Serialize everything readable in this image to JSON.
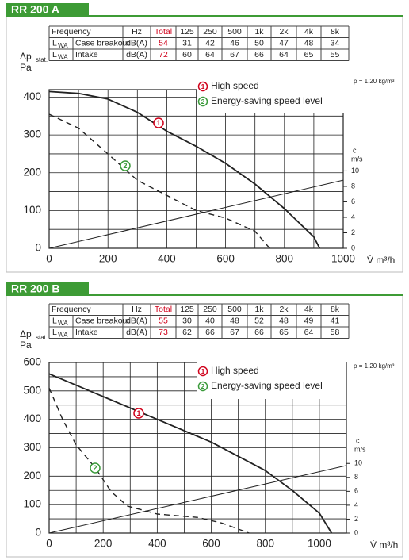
{
  "chart_data": [
    {
      "type": "line",
      "title": "RR 200 A",
      "table": {
        "header": {
          "label": "Frequency",
          "unit": "Hz",
          "total": "Total",
          "bands": [
            125,
            250,
            500,
            "1k",
            "2k",
            "4k",
            "8k"
          ]
        },
        "rows": [
          {
            "symbol": "L",
            "subscript": "WA",
            "label": "Case breakout",
            "unit": "dB(A)",
            "total": 54,
            "values": [
              31,
              42,
              46,
              50,
              47,
              48,
              34
            ]
          },
          {
            "symbol": "L",
            "subscript": "WA",
            "label": "Intake",
            "unit": "dB(A)",
            "total": 72,
            "values": [
              60,
              64,
              67,
              66,
              64,
              65,
              55
            ]
          }
        ]
      },
      "y_label": {
        "symbol": "Δp",
        "subscript": "stat.",
        "unit": "Pa"
      },
      "x_label": "V̇ m³/h",
      "y2_label": {
        "symbol": "c",
        "unit": "m/s"
      },
      "density": "ρ = 1.20 kg/m³",
      "xlim": [
        0,
        1000
      ],
      "xticks": [
        0,
        200,
        400,
        600,
        800,
        1000
      ],
      "xgrid": [
        100,
        300,
        500,
        700,
        900
      ],
      "ylim": [
        0,
        420
      ],
      "yticks": [
        0,
        100,
        200,
        300,
        400
      ],
      "ygrid": [
        50,
        150,
        250,
        350
      ],
      "y2lim": [
        0,
        20.5
      ],
      "y2ticks": [
        0,
        2,
        4,
        6,
        8,
        10
      ],
      "series": [
        {
          "name": "High speed",
          "marker": "1",
          "marker_color": "#d0021b",
          "color": "#222",
          "style": "solid",
          "x": [
            0,
            100,
            200,
            300,
            400,
            500,
            600,
            700,
            800,
            900,
            920
          ],
          "values": [
            415,
            410,
            395,
            360,
            310,
            270,
            225,
            170,
            105,
            30,
            0
          ]
        },
        {
          "name": "Energy-saving speed level",
          "marker": "2",
          "marker_color": "#3a9a3a",
          "color": "#222",
          "style": "dashed",
          "x": [
            0,
            100,
            200,
            300,
            400,
            500,
            600,
            700,
            750
          ],
          "values": [
            355,
            318,
            250,
            180,
            140,
            100,
            80,
            45,
            0
          ]
        },
        {
          "axis": "y2",
          "color": "#222",
          "style": "thin",
          "x": [
            0,
            1000
          ],
          "values": [
            0,
            8.8
          ]
        }
      ]
    },
    {
      "type": "line",
      "title": "RR 200 B",
      "table": {
        "header": {
          "label": "Frequency",
          "unit": "Hz",
          "total": "Total",
          "bands": [
            125,
            250,
            500,
            "1k",
            "2k",
            "4k",
            "8k"
          ]
        },
        "rows": [
          {
            "symbol": "L",
            "subscript": "WA",
            "label": "Case breakout",
            "unit": "dB(A)",
            "total": 55,
            "values": [
              30,
              40,
              48,
              52,
              48,
              49,
              41
            ]
          },
          {
            "symbol": "L",
            "subscript": "WA",
            "label": "Intake",
            "unit": "dB(A)",
            "total": 73,
            "values": [
              62,
              66,
              67,
              66,
              65,
              64,
              58
            ]
          }
        ]
      },
      "y_label": {
        "symbol": "Δp",
        "subscript": "stat.",
        "unit": "Pa"
      },
      "x_label": "V̇ m³/h",
      "y2_label": {
        "symbol": "c",
        "unit": "m/s"
      },
      "density": "ρ = 1.20 kg/m³",
      "xlim": [
        0,
        1100
      ],
      "xticks": [
        0,
        200,
        400,
        600,
        800,
        1000
      ],
      "xgrid": [
        100,
        300,
        500,
        700,
        900
      ],
      "ylim": [
        0,
        600
      ],
      "yticks": [
        0,
        100,
        200,
        300,
        400,
        500,
        600
      ],
      "ygrid": [
        50,
        150,
        250,
        350,
        450,
        550
      ],
      "y2lim": [
        0,
        24.5
      ],
      "y2ticks": [
        0,
        2,
        4,
        6,
        8,
        10
      ],
      "series": [
        {
          "name": "High speed",
          "marker": "1",
          "marker_color": "#d0021b",
          "color": "#222",
          "style": "solid",
          "x": [
            0,
            200,
            400,
            600,
            800,
            900,
            1000,
            1045
          ],
          "values": [
            560,
            480,
            400,
            320,
            220,
            150,
            70,
            0
          ]
        },
        {
          "name": "Energy-saving speed level",
          "marker": "2",
          "marker_color": "#3a9a3a",
          "color": "#222",
          "style": "dashed",
          "x": [
            0,
            50,
            100,
            170,
            230,
            290,
            400,
            550,
            640,
            740
          ],
          "values": [
            510,
            400,
            310,
            230,
            145,
            95,
            67,
            55,
            35,
            0
          ]
        },
        {
          "axis": "y2",
          "color": "#222",
          "style": "thin",
          "x": [
            0,
            1100
          ],
          "values": [
            0,
            9.7
          ]
        }
      ]
    }
  ]
}
